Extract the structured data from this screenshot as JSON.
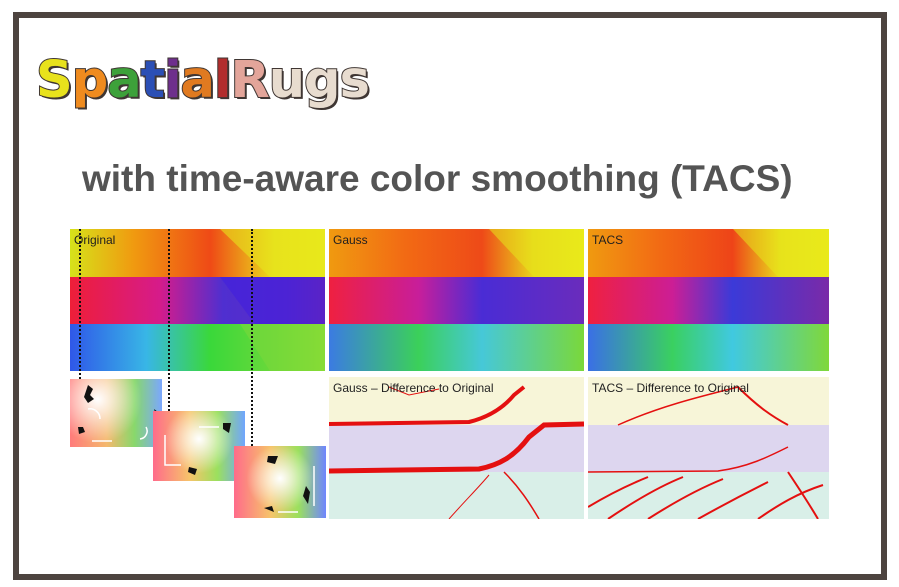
{
  "title": {
    "letters": [
      {
        "ch": "S",
        "color": "#e8e21c"
      },
      {
        "ch": "p",
        "color": "#ef8b1f"
      },
      {
        "ch": "a",
        "color": "#3da13a"
      },
      {
        "ch": "t",
        "color": "#2b4fb5"
      },
      {
        "ch": "i",
        "color": "#6e2f8c"
      },
      {
        "ch": "a",
        "color": "#e07a20"
      },
      {
        "ch": "l",
        "color": "#b22d2d"
      },
      {
        "ch": "R",
        "color": "#e3a59a"
      },
      {
        "ch": "u",
        "color": "#e8dccf"
      },
      {
        "ch": "g",
        "color": "#e8dccf"
      },
      {
        "ch": "s",
        "color": "#e8dccf"
      }
    ]
  },
  "subtitle": "with time-aware color smoothing (TACS)",
  "panels": {
    "original": "Original",
    "gauss": "Gauss",
    "tacs": "TACS",
    "gauss_diff": "Gauss – Difference to Original",
    "tacs_diff": "TACS – Difference to Original"
  },
  "colors": {
    "frame": "#4d4440",
    "subtitle": "#545454",
    "diff_red": "#e41010"
  }
}
